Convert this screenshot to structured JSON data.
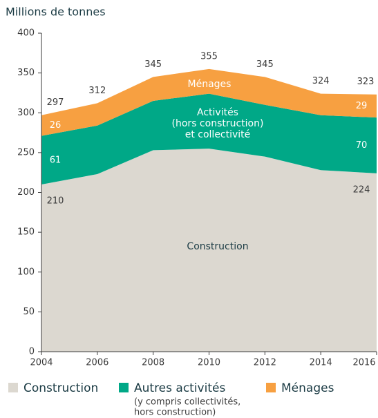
{
  "chart_data": {
    "type": "stacked-area",
    "title": "Millions de tonnes",
    "x": [
      2004,
      2006,
      2008,
      2010,
      2012,
      2014,
      2016
    ],
    "xlim": [
      2004,
      2016
    ],
    "xticks": [
      2004,
      2006,
      2008,
      2010,
      2012,
      2014,
      2016
    ],
    "ylim": [
      0,
      400
    ],
    "yticks": [
      0,
      50,
      100,
      150,
      200,
      250,
      300,
      350,
      400
    ],
    "series": [
      {
        "name": "Construction",
        "color": "#dcd8d0",
        "values": [
          210,
          223,
          253,
          255,
          245,
          228,
          224
        ]
      },
      {
        "name": "Autres activités",
        "note": "(y compris collectivités, hors construction)",
        "color": "#00a887",
        "values": [
          61,
          61,
          62,
          69,
          65,
          69,
          70
        ]
      },
      {
        "name": "Ménages",
        "color": "#f7a041",
        "values": [
          26,
          28,
          30,
          31,
          35,
          27,
          29
        ]
      }
    ],
    "totals": [
      297,
      312,
      345,
      355,
      345,
      324,
      323
    ],
    "annotations": [
      {
        "lines": [
          "Construction"
        ]
      },
      {
        "lines": [
          "Activités",
          "(hors construction)",
          "et collectivité"
        ]
      },
      {
        "lines": [
          "Ménages"
        ]
      }
    ]
  }
}
